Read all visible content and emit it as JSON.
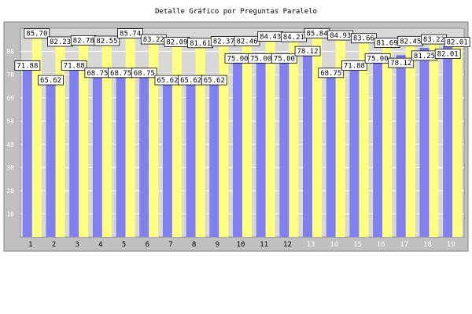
{
  "chart_data": {
    "type": "bar",
    "title": "Detalle Gráfico por Preguntas Paralelo",
    "categories": [
      "1",
      "2",
      "3",
      "4",
      "5",
      "6",
      "7",
      "8",
      "9",
      "10",
      "11",
      "12",
      "13",
      "14",
      "15",
      "16",
      "17",
      "18",
      "19"
    ],
    "series": [
      {
        "values": [
          71.88,
          65.62,
          71.88,
          68.75,
          68.75,
          68.75,
          65.62,
          65.62,
          65.62,
          75.0,
          75.0,
          75.0,
          78.12,
          68.75,
          71.88,
          75.0,
          78.12,
          81.25,
          82.01
        ],
        "color": "#8080f0"
      },
      {
        "values": [
          85.7,
          82.23,
          82.78,
          82.55,
          85.74,
          83.22,
          82.09,
          81.61,
          82.37,
          82.46,
          84.43,
          84.21,
          85.84,
          84.93,
          83.66,
          81.69,
          82.45,
          83.22,
          82.01
        ],
        "color": "#ffff80"
      }
    ],
    "ylim": [
      0,
      90
    ],
    "yticks": [
      10,
      20,
      30,
      40,
      50,
      60,
      70,
      80
    ],
    "grid": true,
    "legend": "none",
    "colors": {
      "frame": "#c0c0c0",
      "plot": "#d8d8d8",
      "grid": "#ffffff",
      "label_bg": "#ffffff"
    }
  }
}
